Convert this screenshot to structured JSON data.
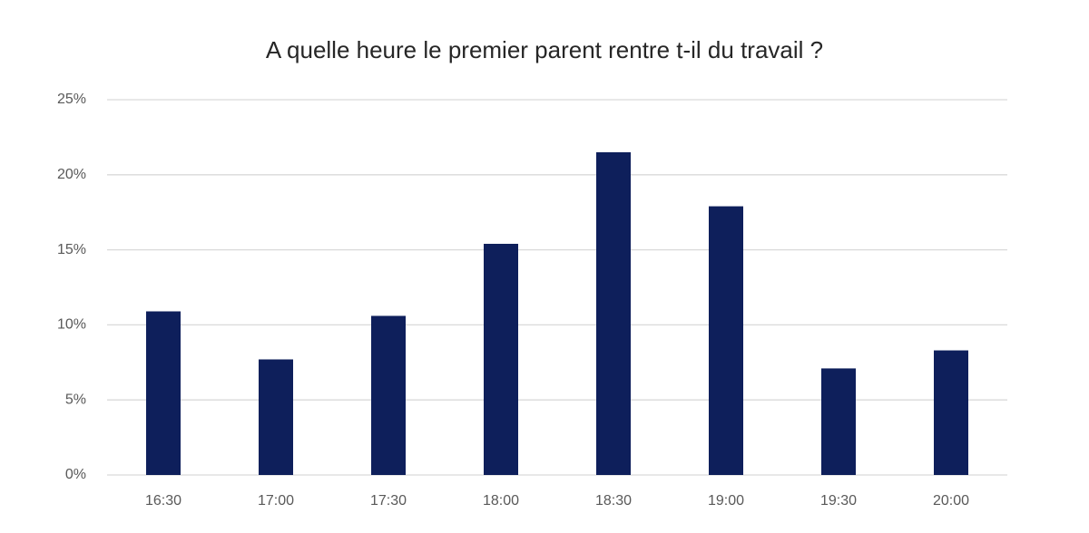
{
  "chart_data": {
    "type": "bar",
    "title": "A quelle heure le premier parent rentre t-il du travail ?",
    "categories": [
      "16:30",
      "17:00",
      "17:30",
      "18:00",
      "18:30",
      "19:00",
      "19:30",
      "20:00"
    ],
    "values": [
      10.9,
      7.7,
      10.6,
      15.4,
      21.5,
      17.9,
      7.1,
      8.3
    ],
    "color": "#0e1f5b",
    "ylim": [
      0,
      25
    ],
    "yticks": [
      {
        "value": 0,
        "label": "0%"
      },
      {
        "value": 5,
        "label": "5%"
      },
      {
        "value": 10,
        "label": "10%"
      },
      {
        "value": 15,
        "label": "15%"
      },
      {
        "value": 20,
        "label": "20%"
      },
      {
        "value": 25,
        "label": "25%"
      }
    ],
    "grid": true
  }
}
